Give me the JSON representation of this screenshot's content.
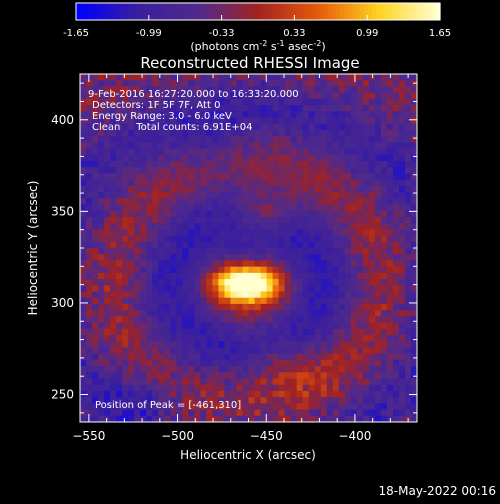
{
  "chart_data": {
    "type": "heatmap",
    "title": "Reconstructed RHESSI Image",
    "xlabel": "Heliocentric X (arcsec)",
    "ylabel": "Heliocentric Y (arcsec)",
    "xlim": [
      -555,
      -365
    ],
    "ylim": [
      235,
      425
    ],
    "x_ticks": [
      -550,
      -500,
      -450,
      -400
    ],
    "y_ticks": [
      250,
      300,
      350,
      400
    ],
    "colorbar": {
      "min": -1.65,
      "max": 1.65,
      "ticks": [
        "-1.65",
        "-0.99",
        "-0.33",
        "0.33",
        "0.99",
        "1.65"
      ],
      "label_prefix": "(photons cm",
      "label_sup1": "-2",
      "label_mid": " s",
      "label_sup2": "-1",
      "label_mid2": " asec",
      "label_sup3": "-2",
      "label_suffix": ")"
    },
    "annotations": [
      " 9-Feb-2016 16:27:20.000 to 16:33:20.000",
      "Detectors: 1F 5F 7F, Att 0",
      "Energy Range: 3.0 - 6.0 keV",
      "Clean     Total counts: 6.91E+04"
    ],
    "peak_label": "Position of Peak = [-461,310]",
    "peak": [
      -461,
      310
    ],
    "colormap": [
      "#0000ff",
      "#3a1e9e",
      "#4f2a8c",
      "#a22222",
      "#e65a0a",
      "#ffd21e",
      "#ffffd0"
    ]
  },
  "footer": {
    "date": "18-May-2022 00:16"
  }
}
